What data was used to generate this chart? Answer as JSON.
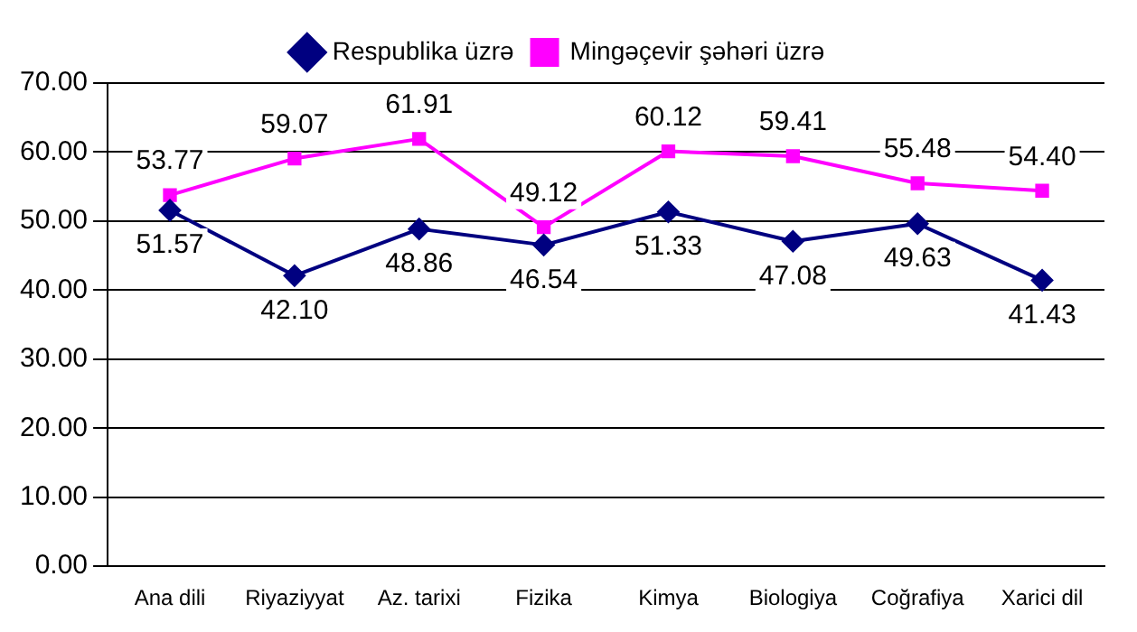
{
  "chart_data": {
    "type": "line",
    "categories": [
      "Ana dili",
      "Riyaziyyat",
      "Az. tarixi",
      "Fizika",
      "Kimya",
      "Biologiya",
      "Coğrafiya",
      "Xarici dil"
    ],
    "series": [
      {
        "name": "Respublika üzrə",
        "color": "#000080",
        "marker": "diamond",
        "values": [
          51.57,
          42.1,
          48.86,
          46.54,
          51.33,
          47.08,
          49.63,
          41.43
        ],
        "value_labels": [
          "51.57",
          "42.10",
          "48.86",
          "46.54",
          "51.33",
          "47.08",
          "49.63",
          "41.43"
        ]
      },
      {
        "name": "Mingəçevir şəhəri üzrə",
        "color": "#ff00ff",
        "marker": "square",
        "values": [
          53.77,
          59.07,
          61.91,
          49.12,
          60.12,
          59.41,
          55.48,
          54.4
        ],
        "value_labels": [
          "53.77",
          "59.07",
          "61.91",
          "49.12",
          "60.12",
          "59.41",
          "55.48",
          "54.40"
        ]
      }
    ],
    "ylim": [
      0,
      70
    ],
    "yticks": [
      {
        "value": 0,
        "label": "0.00"
      },
      {
        "value": 10,
        "label": "10.00"
      },
      {
        "value": 20,
        "label": "20.00"
      },
      {
        "value": 30,
        "label": "30.00"
      },
      {
        "value": 40,
        "label": "40.00"
      },
      {
        "value": 50,
        "label": "50.00"
      },
      {
        "value": 60,
        "label": "60.00"
      },
      {
        "value": 70,
        "label": "70.00"
      }
    ],
    "grid": "y",
    "legend": "top",
    "line_style": "solid"
  }
}
